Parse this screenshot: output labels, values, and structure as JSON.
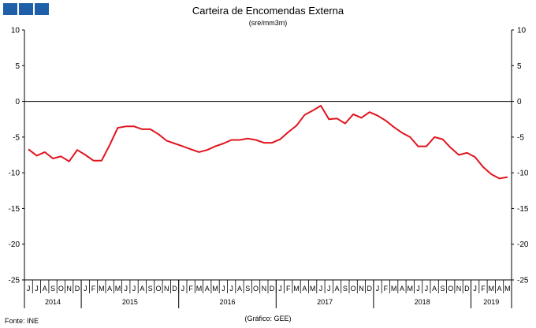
{
  "header": {
    "title": "Carteira de Encomendas Externa",
    "subtitle": "(sre/mm3m)"
  },
  "footer": {
    "source": "Fonte: INE",
    "credit": "(Gráfico: GEE)"
  },
  "colors": {
    "line": "#e0141e",
    "logo": "#1f5fa8",
    "axis": "#000000"
  },
  "chart_data": {
    "type": "line",
    "title": "Carteira de Encomendas Externa",
    "subtitle": "(sre/mm3m)",
    "ylim": [
      -25,
      10
    ],
    "yticks": [
      10,
      5,
      0,
      -5,
      -10,
      -15,
      -20,
      -25
    ],
    "grid": false,
    "months": [
      "J",
      "J",
      "A",
      "S",
      "O",
      "N",
      "D",
      "J",
      "F",
      "M",
      "A",
      "M",
      "J",
      "J",
      "A",
      "S",
      "O",
      "N",
      "D",
      "J",
      "F",
      "M",
      "A",
      "M",
      "J",
      "J",
      "A",
      "S",
      "O",
      "N",
      "D",
      "J",
      "F",
      "M",
      "A",
      "M",
      "J",
      "J",
      "A",
      "S",
      "O",
      "N",
      "D",
      "J",
      "F",
      "M",
      "A",
      "M",
      "J",
      "J",
      "A",
      "S",
      "O",
      "N",
      "D",
      "J",
      "F",
      "M",
      "A",
      "M"
    ],
    "years": [
      {
        "label": "2014",
        "start": 0,
        "end": 7
      },
      {
        "label": "2015",
        "start": 7,
        "end": 19
      },
      {
        "label": "2016",
        "start": 19,
        "end": 31
      },
      {
        "label": "2017",
        "start": 31,
        "end": 43
      },
      {
        "label": "2018",
        "start": 43,
        "end": 55
      },
      {
        "label": "2019",
        "start": 55,
        "end": 60
      }
    ],
    "series": [
      {
        "values": [
          -6.7,
          -7.6,
          -7.1,
          -8.0,
          -7.7,
          -8.4,
          -6.8,
          -7.5,
          -8.3,
          -8.3,
          -6.1,
          -3.7,
          -3.5,
          -3.5,
          -3.9,
          -3.9,
          -4.6,
          -5.5,
          -5.9,
          -6.3,
          -6.7,
          -7.1,
          -6.8,
          -6.3,
          -5.9,
          -5.4,
          -5.4,
          -5.2,
          -5.4,
          -5.8,
          -5.8,
          -5.3,
          -4.3,
          -3.4,
          -1.9,
          -1.3,
          -0.6,
          -2.5,
          -2.4,
          -3.1,
          -1.8,
          -2.3,
          -1.5,
          -2.0,
          -2.7,
          -3.6,
          -4.4,
          -5.0,
          -6.3,
          -6.3,
          -5.0,
          -5.3,
          -6.5,
          -7.5,
          -7.2,
          -7.8,
          -9.2,
          -10.2,
          -10.8,
          -10.6
        ]
      }
    ]
  }
}
